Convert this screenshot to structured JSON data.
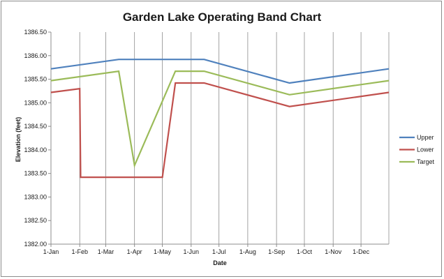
{
  "chart_data": {
    "type": "line",
    "title": "Garden Lake Operating Band Chart",
    "xlabel": "Date",
    "ylabel": "Elevation (feet)",
    "ylim": [
      1382.0,
      1386.5
    ],
    "yticks": [
      "1382.00",
      "1382.50",
      "1383.00",
      "1383.50",
      "1384.00",
      "1384.50",
      "1385.00",
      "1385.50",
      "1386.00",
      "1386.50"
    ],
    "xticks": [
      "1-Jan",
      "1-Feb",
      "1-Mar",
      "1-Apr",
      "1-May",
      "1-Jun",
      "1-Jul",
      "1-Aug",
      "1-Sep",
      "1-Oct",
      "1-Nov",
      "1-Dec"
    ],
    "grid": "vertical",
    "legend_position": "right",
    "series": [
      {
        "name": "Upper",
        "color": "#4f81bd",
        "points": [
          [
            "1-Jan",
            1385.72
          ],
          [
            "15-Mar",
            1385.92
          ],
          [
            "15-Jun",
            1385.92
          ],
          [
            "15-Sep",
            1385.42
          ],
          [
            "31-Dec",
            1385.72
          ]
        ]
      },
      {
        "name": "Lower",
        "color": "#c0504d",
        "points": [
          [
            "1-Jan",
            1385.22
          ],
          [
            "1-Feb",
            1385.3
          ],
          [
            "2-Feb",
            1383.42
          ],
          [
            "1-May",
            1383.42
          ],
          [
            "15-May",
            1385.42
          ],
          [
            "15-Jun",
            1385.42
          ],
          [
            "15-Sep",
            1384.92
          ],
          [
            "31-Dec",
            1385.22
          ]
        ]
      },
      {
        "name": "Target",
        "color": "#9bbb59",
        "points": [
          [
            "1-Jan",
            1385.47
          ],
          [
            "15-Mar",
            1385.67
          ],
          [
            "1-Apr",
            1383.67
          ],
          [
            "15-May",
            1385.67
          ],
          [
            "15-Jun",
            1385.67
          ],
          [
            "15-Sep",
            1385.17
          ],
          [
            "31-Dec",
            1385.47
          ]
        ]
      }
    ]
  }
}
